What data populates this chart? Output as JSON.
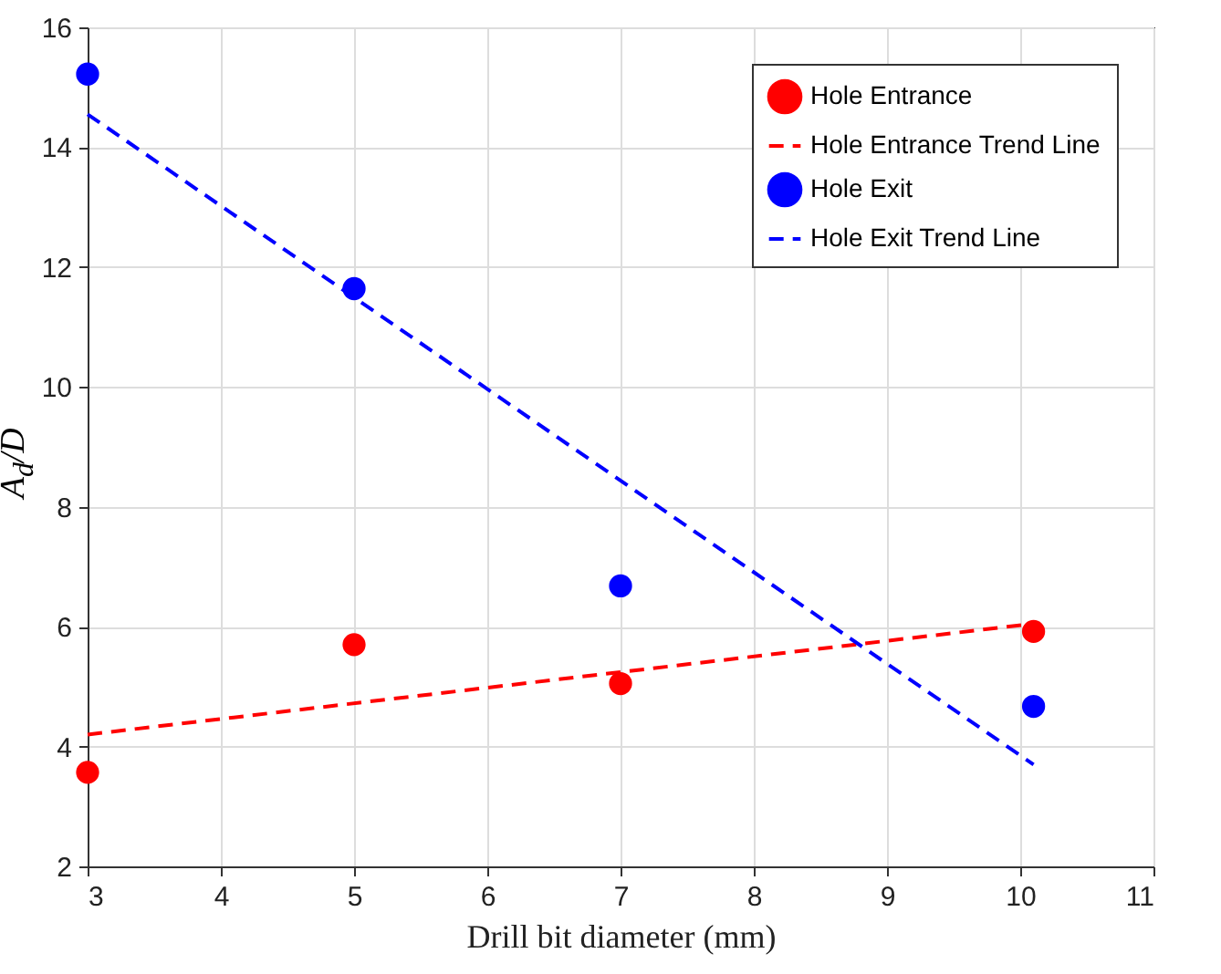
{
  "chart_data": {
    "type": "scatter",
    "xlabel": "Drill bit diameter (mm)",
    "ylabel": "A$_{d}$/D",
    "xlim": [
      3,
      11
    ],
    "xticks": [
      3,
      4,
      5,
      6,
      7,
      8,
      9,
      10,
      11
    ],
    "ylim": [
      2,
      16
    ],
    "yticks": [
      2,
      4,
      6,
      8,
      10,
      12,
      14,
      16
    ],
    "grid": true,
    "legend": "top right",
    "series": [
      {
        "name": "Hole Entrance",
        "marker": "circle",
        "color": "#ff0000",
        "x": [
          3,
          5,
          7,
          10.1
        ],
        "values": [
          3.57,
          5.7,
          5.05,
          5.92
        ]
      },
      {
        "name": "Hole Entrance Trend Line",
        "type": "line",
        "line_style": "dashed",
        "color": "#ff0000",
        "x": [
          3,
          10.1
        ],
        "values": [
          4.2,
          6.05
        ]
      },
      {
        "name": "Hole Exit",
        "marker": "circle",
        "color": "#0000ff",
        "x": [
          3,
          5,
          7,
          10.1
        ],
        "values": [
          15.22,
          11.64,
          6.68,
          4.67
        ]
      },
      {
        "name": "Hole Exit Trend Line",
        "type": "line",
        "line_style": "dashed",
        "color": "#0000ff",
        "x": [
          3,
          10.1
        ],
        "values": [
          14.55,
          3.7
        ]
      }
    ]
  }
}
